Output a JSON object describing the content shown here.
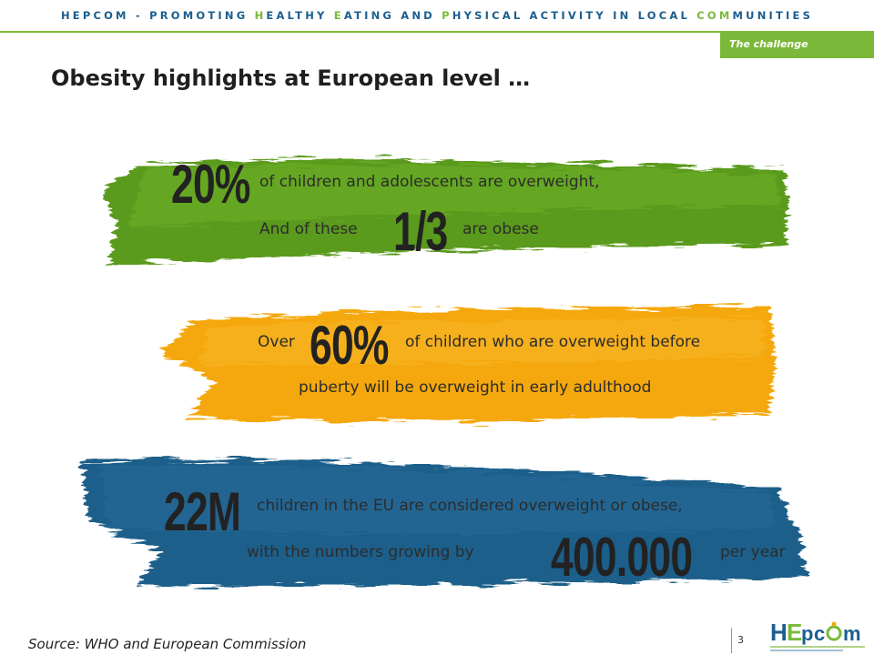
{
  "header": {
    "banner_parts": [
      {
        "t": "HEPCOM - PROMOTING ",
        "c": "b"
      },
      {
        "t": "H",
        "c": "g"
      },
      {
        "t": "EALTHY ",
        "c": "b"
      },
      {
        "t": "E",
        "c": "g"
      },
      {
        "t": "ATING AND ",
        "c": "b"
      },
      {
        "t": "P",
        "c": "g"
      },
      {
        "t": "HYSICAL ACTIVITY IN LOCAL ",
        "c": "b"
      },
      {
        "t": "COM",
        "c": "g"
      },
      {
        "t": "MUNITIES",
        "c": "b"
      }
    ],
    "section_tag": "The challenge"
  },
  "slide": {
    "title": "Obesity highlights at European level …",
    "stat1": {
      "value_main": "20%",
      "text_line1": "of children and adolescents are overweight,",
      "text_line2_pre": "And of these",
      "value_sub": "1/3",
      "text_line2_post": "are obese"
    },
    "stat2": {
      "text_pre": "Over",
      "value_main": "60%",
      "text_line1": "of children who are overweight before",
      "text_line2": "puberty will be overweight in early adulthood"
    },
    "stat3": {
      "value_main": "22M",
      "text_line1": "children in the EU are considered overweight or obese,",
      "text_line2_pre": "with the numbers growing by",
      "value_sub": "400.000",
      "text_line2_post": "per year"
    }
  },
  "footer": {
    "source": "Source: WHO and European Commission",
    "page_number": "3",
    "logo_text": "HEPCOM"
  },
  "colors": {
    "brand_green": "#7bb83a",
    "brand_blue": "#1b5e8f",
    "band_green": "#5a9a1e",
    "band_orange": "#f5a80c",
    "band_blue": "#1f5e8a"
  }
}
